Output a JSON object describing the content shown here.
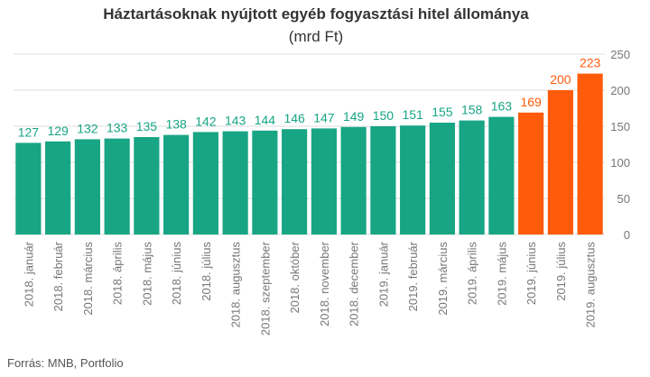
{
  "chart_data": {
    "type": "bar",
    "title": "Háztartásoknak nyújtott egyéb fogyasztási hitel állománya",
    "subtitle": "(mrd Ft)",
    "source": "Forrás: MNB, Portfolio",
    "categories": [
      "2018. január",
      "2018. február",
      "2018. március",
      "2018. április",
      "2018. május",
      "2018. június",
      "2018. július",
      "2018. augusztus",
      "2018. szeptember",
      "2018. október",
      "2018. november",
      "2018. december",
      "2019. január",
      "2019. február",
      "2019. március",
      "2019. április",
      "2019. május",
      "2019. június",
      "2019. július",
      "2019. augusztus"
    ],
    "values": [
      127,
      129,
      132,
      133,
      135,
      138,
      142,
      143,
      144,
      146,
      147,
      149,
      150,
      151,
      155,
      158,
      163,
      169,
      200,
      223
    ],
    "ylim": [
      0,
      250
    ],
    "yticks": [
      0,
      50,
      100,
      150,
      200,
      250
    ],
    "y_axis_position": "right",
    "grid": true,
    "colors": {
      "base": "#17a584",
      "highlight": "#ff5b0a",
      "grid": "#dddddd"
    },
    "highlight_from_index": 17
  }
}
